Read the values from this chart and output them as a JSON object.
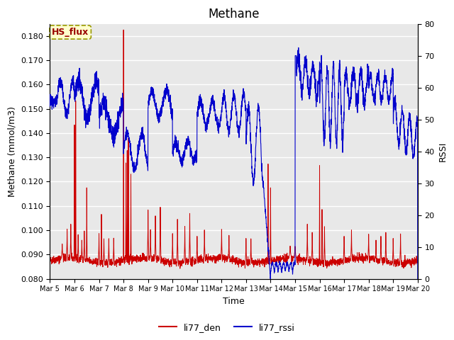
{
  "title": "Methane",
  "xlabel": "Time",
  "ylabel_left": "Methane (mmol/m3)",
  "ylabel_right": "RSSI",
  "ylim_left": [
    0.08,
    0.185
  ],
  "ylim_right": [
    0,
    80
  ],
  "yticks_left": [
    0.08,
    0.09,
    0.1,
    0.11,
    0.12,
    0.13,
    0.14,
    0.15,
    0.16,
    0.17,
    0.18
  ],
  "yticks_right": [
    0,
    10,
    20,
    30,
    40,
    50,
    60,
    70,
    80
  ],
  "xtick_labels": [
    "Mar 5",
    "Mar 6",
    "Mar 7",
    "Mar 8",
    "Mar 9",
    "Mar 10",
    "Mar 11",
    "Mar 12",
    "Mar 13",
    "Mar 14",
    "Mar 15",
    "Mar 16",
    "Mar 17",
    "Mar 18",
    "Mar 19",
    "Mar 20"
  ],
  "color_red": "#cc0000",
  "color_blue": "#0000cc",
  "legend_red": "li77_den",
  "legend_blue": "li77_rssi",
  "annotation_text": "HS_flux",
  "annotation_bg": "#ffffcc",
  "annotation_border": "#999900",
  "plot_bg": "#e8e8e8",
  "fig_bg": "#ffffff",
  "grid_color": "#ffffff",
  "title_fontsize": 12,
  "label_fontsize": 9,
  "tick_fontsize": 8,
  "legend_fontsize": 9
}
